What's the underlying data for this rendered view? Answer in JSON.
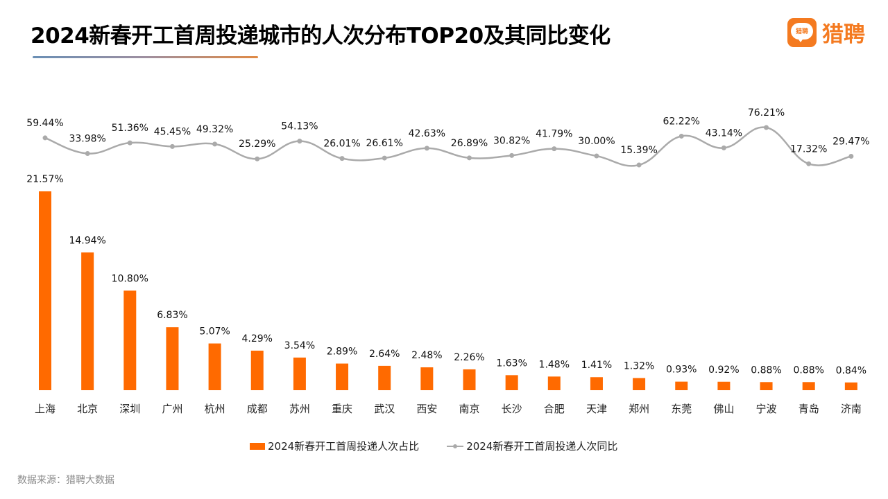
{
  "header": {
    "title": "2024新春开工首周投递城市的人次分布TOP20及其同比变化",
    "logo_text": "猎聘",
    "logo_badge_text": "猎聘"
  },
  "colors": {
    "bar": "#ff6a00",
    "line": "#aaaaaa",
    "brand": "#f47a20"
  },
  "chart_data": {
    "type": "bar",
    "title": "2024新春开工首周投递城市的人次分布TOP20及其同比变化",
    "xlabel": "",
    "ylabel": "",
    "grid": false,
    "legend_position": "bottom",
    "categories": [
      "上海",
      "北京",
      "深圳",
      "广州",
      "杭州",
      "成都",
      "苏州",
      "重庆",
      "武汉",
      "西安",
      "南京",
      "长沙",
      "合肥",
      "天津",
      "郑州",
      "东莞",
      "佛山",
      "宁波",
      "青岛",
      "济南"
    ],
    "series": [
      {
        "name": "2024新春开工首周投递人次占比",
        "type": "bar",
        "unit": "%",
        "values": [
          21.57,
          14.94,
          10.8,
          6.83,
          5.07,
          4.29,
          3.54,
          2.89,
          2.64,
          2.48,
          2.26,
          1.63,
          1.48,
          1.41,
          1.32,
          0.93,
          0.92,
          0.88,
          0.88,
          0.84
        ],
        "labels": [
          "21.57%",
          "14.94%",
          "10.80%",
          "6.83%",
          "5.07%",
          "4.29%",
          "3.54%",
          "2.89%",
          "2.64%",
          "2.48%",
          "2.26%",
          "1.63%",
          "1.48%",
          "1.41%",
          "1.32%",
          "0.93%",
          "0.92%",
          "0.88%",
          "0.88%",
          "0.84%"
        ]
      },
      {
        "name": "2024新春开工首周投递人次同比",
        "type": "line",
        "smooth": true,
        "axis": "secondary",
        "unit": "%",
        "values": [
          59.44,
          33.98,
          51.36,
          45.45,
          49.32,
          25.29,
          54.13,
          26.01,
          26.61,
          42.63,
          26.89,
          30.82,
          41.79,
          30.0,
          15.39,
          62.22,
          43.14,
          76.21,
          17.32,
          29.47
        ],
        "labels": [
          "59.44%",
          "33.98%",
          "51.36%",
          "45.45%",
          "49.32%",
          "25.29%",
          "54.13%",
          "26.01%",
          "26.61%",
          "42.63%",
          "26.89%",
          "30.82%",
          "41.79%",
          "30.00%",
          "15.39%",
          "62.22%",
          "43.14%",
          "76.21%",
          "17.32%",
          "29.47%"
        ]
      }
    ]
  },
  "legend": {
    "bar_label": "2024新春开工首周投递人次占比",
    "line_label": "2024新春开工首周投递人次同比"
  },
  "footer": {
    "source": "数据来源：猎聘大数据"
  }
}
